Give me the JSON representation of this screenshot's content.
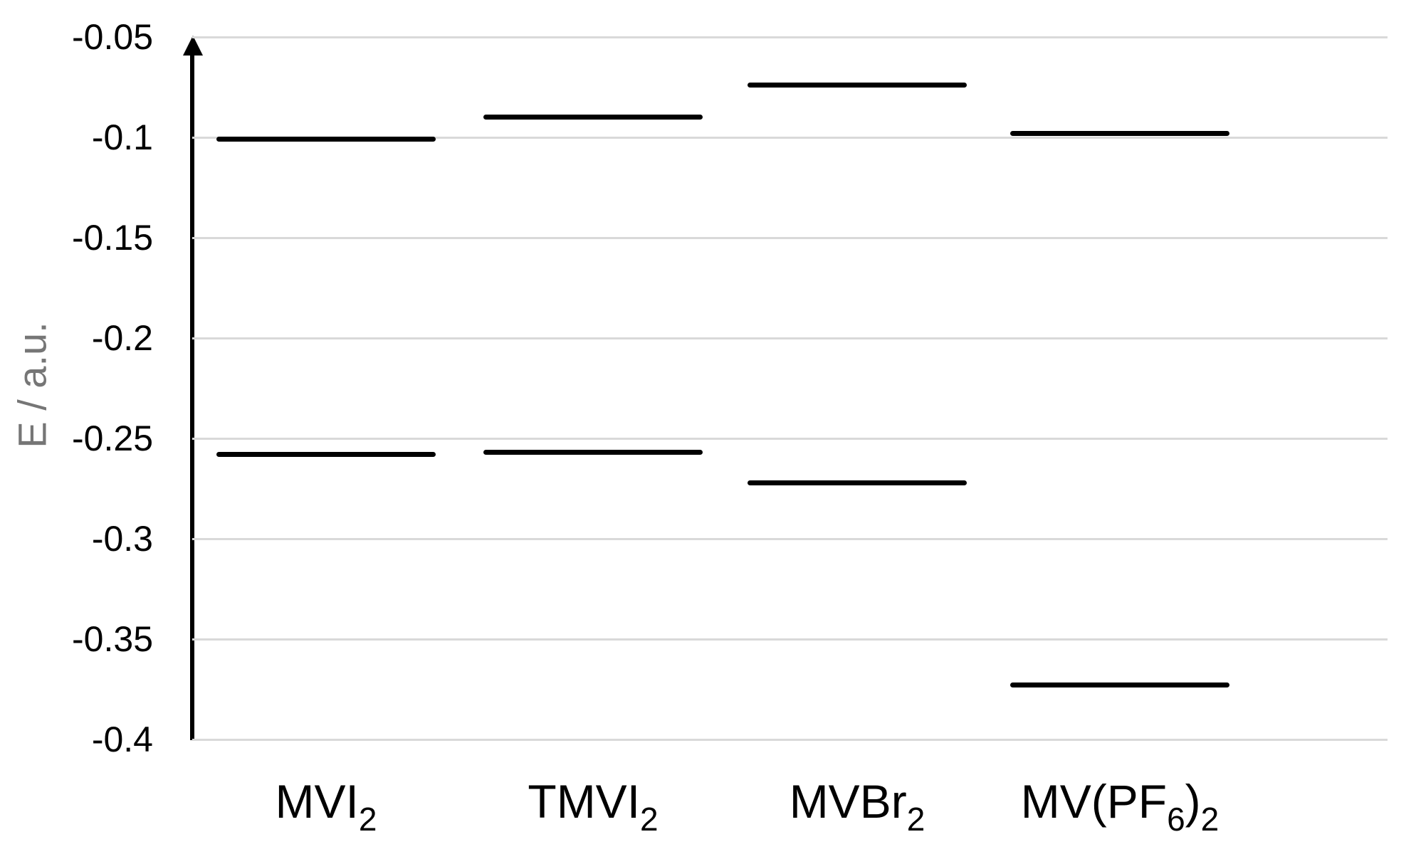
{
  "chart_data": {
    "type": "scatter",
    "subtype": "energy-level-diagram",
    "title": "",
    "xlabel": "",
    "ylabel": "E / a.u.",
    "ylim": [
      -0.4,
      -0.05
    ],
    "yticks": [
      -0.05,
      -0.1,
      -0.15,
      -0.2,
      -0.25,
      -0.3,
      -0.35,
      -0.4
    ],
    "ytick_labels": [
      "-0.05",
      "-0.1",
      "-0.15",
      "-0.2",
      "-0.25",
      "-0.3",
      "-0.35",
      "-0.4"
    ],
    "grid": true,
    "legend": "none",
    "axis_arrow": "up",
    "categories": [
      "MVI2",
      "TMVI2",
      "MVBr2",
      "MV(PF6)2"
    ],
    "category_labels": [
      {
        "parts": [
          {
            "text": "MVI",
            "sub": false
          },
          {
            "text": "2",
            "sub": true
          }
        ]
      },
      {
        "parts": [
          {
            "text": "TMVI",
            "sub": false
          },
          {
            "text": "2",
            "sub": true
          }
        ]
      },
      {
        "parts": [
          {
            "text": "MVBr",
            "sub": false
          },
          {
            "text": "2",
            "sub": true
          }
        ]
      },
      {
        "parts": [
          {
            "text": "MV(PF",
            "sub": false
          },
          {
            "text": "6",
            "sub": true
          },
          {
            "text": ")",
            "sub": false
          },
          {
            "text": "2",
            "sub": true
          }
        ]
      }
    ],
    "series": [
      {
        "name": "upper level",
        "values": [
          -0.101,
          -0.09,
          -0.074,
          -0.098
        ]
      },
      {
        "name": "lower level",
        "values": [
          -0.258,
          -0.257,
          -0.272,
          -0.373
        ]
      }
    ],
    "colors": {
      "level": "#000000",
      "gridline": "#d9d9d9",
      "axis": "#000000",
      "tick_label": "#000000",
      "category_label": "#000000",
      "y_title": "#767676"
    }
  }
}
